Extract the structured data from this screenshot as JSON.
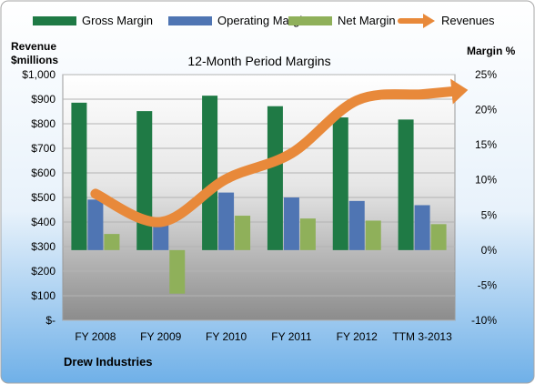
{
  "chart_data": {
    "type": "bar",
    "title": "12-Month Period Margins",
    "left_axis_title_line1": "Revenue",
    "left_axis_title_line2": "$millions",
    "right_axis_title": "Margin %",
    "footer": "Drew Industries",
    "categories": [
      "FY 2008",
      "FY 2009",
      "FY 2010",
      "FY 2011",
      "FY 2012",
      "TTM 3-2013"
    ],
    "left_axis": {
      "min": 0,
      "max": 1000,
      "ticks": [
        {
          "value": 0,
          "label": "$-"
        },
        {
          "value": 100,
          "label": "$100"
        },
        {
          "value": 200,
          "label": "$200"
        },
        {
          "value": 300,
          "label": "$300"
        },
        {
          "value": 400,
          "label": "$400"
        },
        {
          "value": 500,
          "label": "$500"
        },
        {
          "value": 600,
          "label": "$600"
        },
        {
          "value": 700,
          "label": "$700"
        },
        {
          "value": 800,
          "label": "$800"
        },
        {
          "value": 900,
          "label": "$900"
        },
        {
          "value": 1000,
          "label": "$1,000"
        }
      ]
    },
    "right_axis": {
      "min": -10,
      "max": 25,
      "ticks": [
        {
          "value": -10,
          "label": "-10%"
        },
        {
          "value": -5,
          "label": "-5%"
        },
        {
          "value": 0,
          "label": "0%"
        },
        {
          "value": 5,
          "label": "5%"
        },
        {
          "value": 10,
          "label": "10%"
        },
        {
          "value": 15,
          "label": "15%"
        },
        {
          "value": 20,
          "label": "20%"
        },
        {
          "value": 25,
          "label": "25%"
        }
      ]
    },
    "series": [
      {
        "name": "Gross Margin",
        "axis": "right",
        "kind": "bar",
        "color": "#1f7a45",
        "values": [
          21.0,
          19.8,
          22.0,
          20.5,
          18.9,
          18.6
        ]
      },
      {
        "name": "Operating Margin",
        "axis": "right",
        "kind": "bar",
        "color": "#4f75b3",
        "values": [
          7.2,
          4.2,
          8.2,
          7.5,
          7.0,
          6.4
        ]
      },
      {
        "name": "Net Margin",
        "axis": "right",
        "kind": "bar",
        "color": "#8fb05a",
        "values": [
          2.3,
          -6.2,
          4.9,
          4.5,
          4.2,
          3.7
        ]
      },
      {
        "name": "Revenues",
        "axis": "left",
        "kind": "line",
        "color": "#e8893a",
        "values": [
          515,
          400,
          575,
          680,
          895,
          920
        ]
      }
    ],
    "grid": true,
    "legend_position": "top"
  }
}
